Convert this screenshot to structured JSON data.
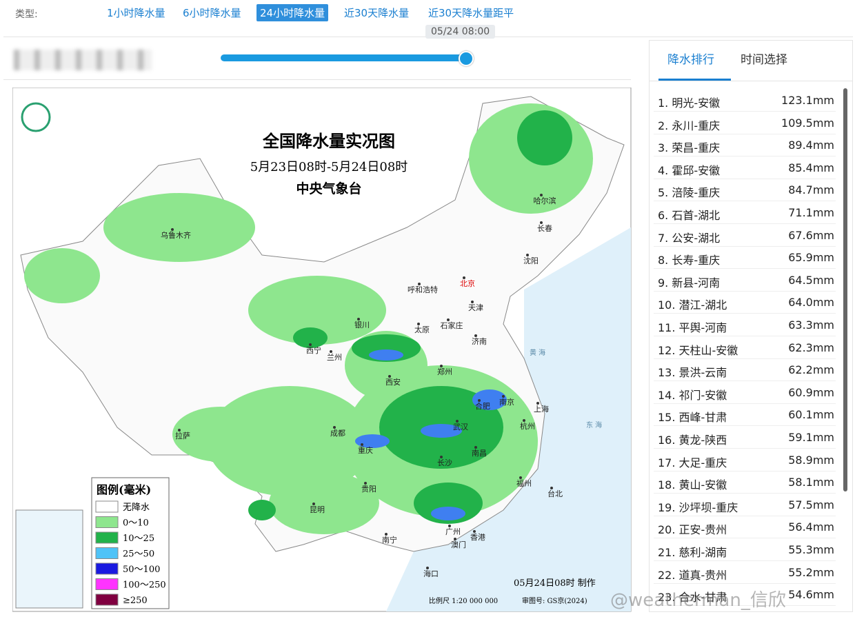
{
  "filter": {
    "label": "类型:",
    "tabs": [
      "1小时降水量",
      "6小时降水量",
      "24小时降水量",
      "近30天降水量",
      "近30天降水量距平"
    ],
    "active_tab": "24小时降水量"
  },
  "slider": {
    "time": "05/24 08:00"
  },
  "map": {
    "title": "全国降水量实况图",
    "period": "5月23日08时-5月24日08时",
    "issuer": "中央气象台",
    "legend": {
      "title": "图例(毫米)",
      "items": [
        "无降水",
        "0～10",
        "10～25",
        "25～50",
        "50～100",
        "100～250",
        "≥250"
      ]
    },
    "made": "05月24日08时 制作",
    "scale": "比例尺 1:20 000 000",
    "review": "审图号: GS京(2024)",
    "cities": [
      "乌鲁木齐",
      "哈尔滨",
      "长春",
      "沈阳",
      "呼和浩特",
      "北京",
      "天津",
      "石家庄",
      "太原",
      "银川",
      "西宁",
      "兰州",
      "济南",
      "郑州",
      "西安",
      "南京",
      "上海",
      "合肥",
      "杭州",
      "武汉",
      "成都",
      "重庆",
      "拉萨",
      "长沙",
      "南昌",
      "福州",
      "台北",
      "贵阳",
      "昆明",
      "南宁",
      "广州",
      "香港",
      "澳门",
      "海口"
    ],
    "seas": [
      "黄 海",
      "东 海"
    ]
  },
  "panel": {
    "tabs": [
      "降水排行",
      "时间选择"
    ],
    "active_tab": "降水排行",
    "ranking": [
      {
        "station": "1. 明光-安徽",
        "amount": "123.1mm"
      },
      {
        "station": "2. 永川-重庆",
        "amount": "109.5mm"
      },
      {
        "station": "3. 荣昌-重庆",
        "amount": "89.4mm"
      },
      {
        "station": "4. 霍邱-安徽",
        "amount": "85.4mm"
      },
      {
        "station": "5. 涪陵-重庆",
        "amount": "84.7mm"
      },
      {
        "station": "6. 石首-湖北",
        "amount": "71.1mm"
      },
      {
        "station": "7. 公安-湖北",
        "amount": "67.6mm"
      },
      {
        "station": "8. 长寿-重庆",
        "amount": "65.9mm"
      },
      {
        "station": "9. 新县-河南",
        "amount": "64.5mm"
      },
      {
        "station": "10. 潜江-湖北",
        "amount": "64.0mm"
      },
      {
        "station": "11. 平舆-河南",
        "amount": "63.3mm"
      },
      {
        "station": "12. 天柱山-安徽",
        "amount": "62.3mm"
      },
      {
        "station": "13. 景洪-云南",
        "amount": "62.2mm"
      },
      {
        "station": "14. 祁门-安徽",
        "amount": "60.9mm"
      },
      {
        "station": "15. 西峰-甘肃",
        "amount": "60.1mm"
      },
      {
        "station": "16. 黄龙-陕西",
        "amount": "59.1mm"
      },
      {
        "station": "17. 大足-重庆",
        "amount": "58.9mm"
      },
      {
        "station": "18. 黄山-安徽",
        "amount": "58.1mm"
      },
      {
        "station": "19. 沙坪坝-重庆",
        "amount": "57.5mm"
      },
      {
        "station": "20. 正安-贵州",
        "amount": "56.4mm"
      },
      {
        "station": "21. 慈利-湖南",
        "amount": "55.3mm"
      },
      {
        "station": "22. 道真-贵州",
        "amount": "55.2mm"
      },
      {
        "station": "23. 合水-甘肃",
        "amount": "54.6mm"
      }
    ]
  },
  "watermark": "@weatherman_信欣"
}
